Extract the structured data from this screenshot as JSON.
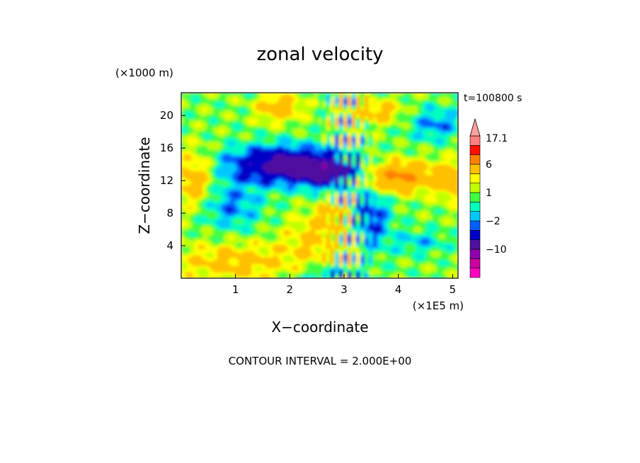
{
  "chart_data": {
    "type": "heatmap",
    "title": "zonal velocity",
    "time_label": "t=100800 s",
    "xlabel": "X−coordinate",
    "ylabel": "Z−coordinate",
    "x_unit": "(×1E5 m)",
    "y_unit": "(×1000 m)",
    "xlim": [
      0,
      5.1
    ],
    "ylim": [
      0,
      22.8
    ],
    "x_ticks": [
      1,
      2,
      3,
      4,
      5
    ],
    "y_ticks": [
      4,
      8,
      12,
      16,
      20
    ],
    "footer": "CONTOUR INTERVAL = 2.000E+00",
    "grid": false,
    "colorbar": {
      "labels": [
        {
          "text": "17.1",
          "value": 17.1
        },
        {
          "text": "6",
          "value": 6
        },
        {
          "text": "1",
          "value": 1
        },
        {
          "text": "−2",
          "value": -2
        },
        {
          "text": "−10",
          "value": -10
        }
      ],
      "levels": [
        -18,
        -14,
        -10,
        -6,
        -3,
        -2,
        -1,
        0,
        1,
        2,
        3,
        6,
        10,
        14,
        18
      ],
      "colors": [
        "#ff00c0",
        "#cc00a0",
        "#9000b0",
        "#5010a0",
        "#0000c8",
        "#0060ff",
        "#00c8ff",
        "#00ffc0",
        "#40ff40",
        "#c0ff00",
        "#ffff00",
        "#ffc000",
        "#ff8000",
        "#ff1000",
        "#ff8080",
        "#ffa0a0"
      ]
    }
  }
}
